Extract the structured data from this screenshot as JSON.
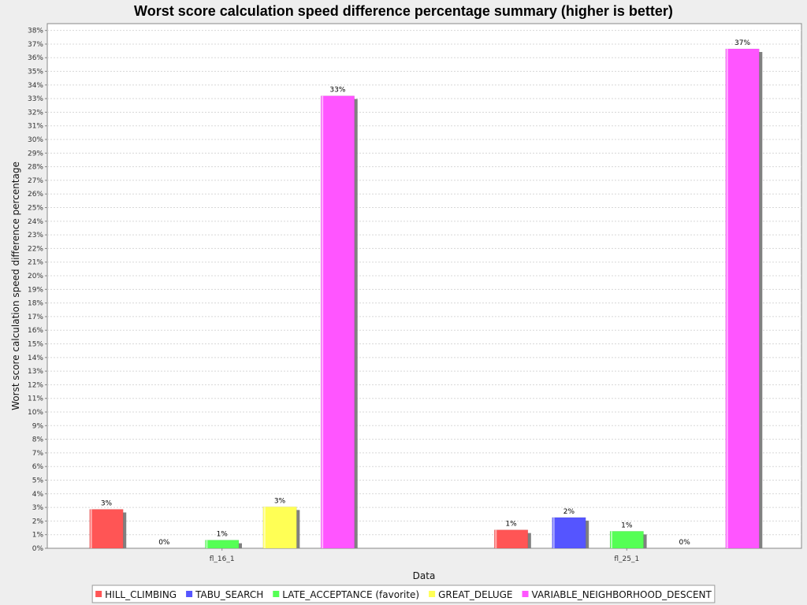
{
  "chart_data": {
    "type": "bar",
    "title": "Worst score calculation speed difference percentage summary (higher is better)",
    "xlabel": "Data",
    "ylabel": "Worst score calculation speed difference percentage",
    "ylim": [
      0,
      38.5
    ],
    "ytick_step": 1,
    "ytick_suffix": "%",
    "grid": true,
    "legend_position": "bottom",
    "categories": [
      "fl_16_1",
      "fl_25_1"
    ],
    "series": [
      {
        "name": "HILL_CLIMBING",
        "color": "#ff5555",
        "values": [
          2.86,
          1.35
        ],
        "labels": [
          "3%",
          "1%"
        ]
      },
      {
        "name": "TABU_SEARCH",
        "color": "#5555ff",
        "values": [
          0,
          2.26
        ],
        "labels": [
          "0%",
          "2%"
        ]
      },
      {
        "name": "LATE_ACCEPTANCE (favorite)",
        "color": "#55ff55",
        "values": [
          0.6,
          1.25
        ],
        "labels": [
          "1%",
          "1%"
        ]
      },
      {
        "name": "GREAT_DELUGE",
        "color": "#ffff55",
        "values": [
          3.04,
          0
        ],
        "labels": [
          "3%",
          "0%"
        ]
      },
      {
        "name": "VARIABLE_NEIGHBORHOOD_DESCENT",
        "color": "#ff55ff",
        "values": [
          33.2,
          36.65
        ],
        "labels": [
          "33%",
          "37%"
        ]
      }
    ]
  }
}
